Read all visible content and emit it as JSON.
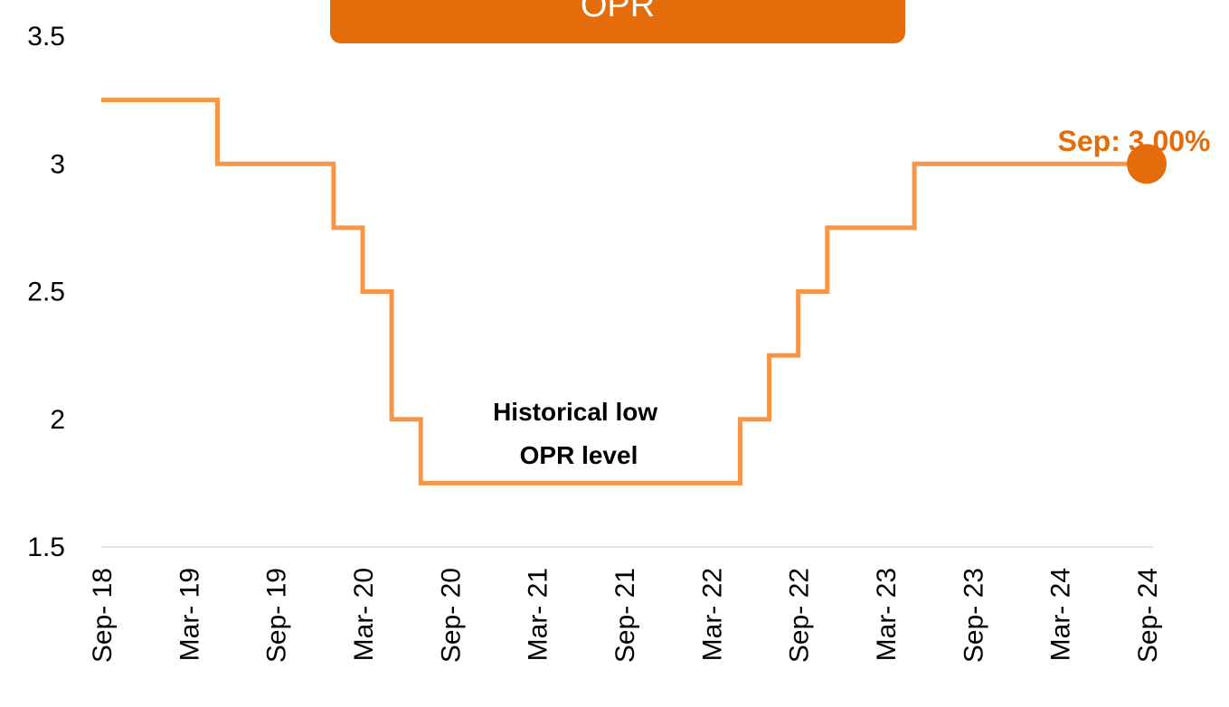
{
  "colors": {
    "accent": "#e46c0a",
    "line": "#f79646",
    "axis": "#d9d9d9",
    "title_text": "#ffffff"
  },
  "title": "OPR",
  "chart_data": {
    "type": "line",
    "step": true,
    "title": "OPR",
    "xlabel": "",
    "ylabel": "",
    "ylim": [
      1.5,
      3.5
    ],
    "yticks": [
      "1.5",
      "2",
      "2.5",
      "3",
      "3.5"
    ],
    "xticks": [
      "Sep- 18",
      "Mar- 19",
      "Sep- 19",
      "Mar- 20",
      "Sep- 20",
      "Mar- 21",
      "Sep- 21",
      "Mar- 22",
      "Sep- 22",
      "Mar- 23",
      "Sep- 23",
      "Mar- 24",
      "Sep- 24"
    ],
    "x_range": [
      "2018-09",
      "2024-09"
    ],
    "grid": false,
    "series": [
      {
        "points": [
          {
            "x": "2018-09",
            "y": 3.25
          },
          {
            "x": "2019-05",
            "y": 3.0
          },
          {
            "x": "2020-01",
            "y": 2.75
          },
          {
            "x": "2020-03",
            "y": 2.5
          },
          {
            "x": "2020-05",
            "y": 2.0
          },
          {
            "x": "2020-07",
            "y": 1.75
          },
          {
            "x": "2022-05",
            "y": 2.0
          },
          {
            "x": "2022-07",
            "y": 2.25
          },
          {
            "x": "2022-09",
            "y": 2.5
          },
          {
            "x": "2022-11",
            "y": 2.75
          },
          {
            "x": "2023-05",
            "y": 3.0
          },
          {
            "x": "2024-09",
            "y": 3.0
          }
        ]
      }
    ],
    "annotations": [
      {
        "text_lines": [
          "Historical low",
          "OPR level"
        ]
      },
      {
        "text": "Sep: 3.00%",
        "x": "2024-09",
        "y": 3.0
      }
    ]
  }
}
